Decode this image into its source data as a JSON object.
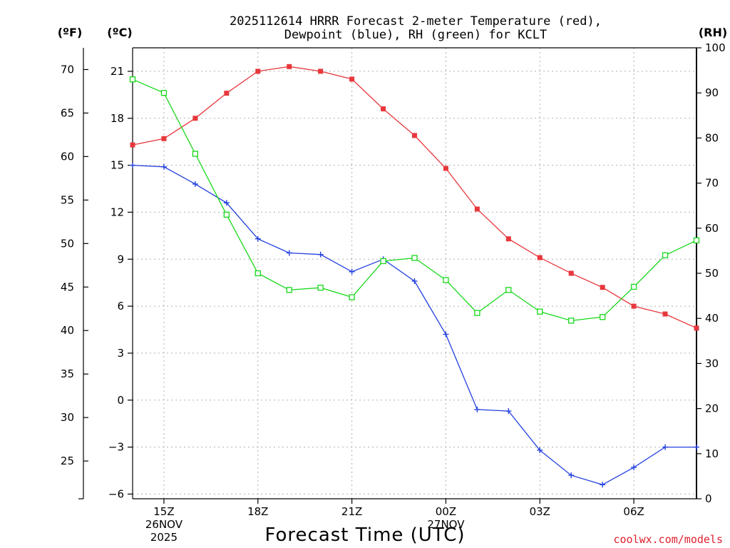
{
  "chart_data": {
    "type": "line",
    "title": [
      "2025112614 HRRR Forecast 2-meter Temperature (red),",
      "Dewpoint (blue), RH (green) for KCLT"
    ],
    "xlabel": "Forecast Time (UTC)",
    "credit": "coolwx.com/models",
    "units": {
      "fahrenheit": "(ºF)",
      "celsius": "(ºC)",
      "rh": "(RH)"
    },
    "x": [
      14,
      15,
      16,
      17,
      18,
      19,
      20,
      21,
      22,
      23,
      24,
      25,
      26,
      27,
      28,
      29,
      30,
      31,
      32
    ],
    "xlim": [
      14,
      32
    ],
    "x_ticks": [
      {
        "x": 15,
        "lines": [
          "15Z",
          "26NOV",
          "2025"
        ]
      },
      {
        "x": 18,
        "lines": [
          "18Z"
        ]
      },
      {
        "x": 21,
        "lines": [
          "21Z"
        ]
      },
      {
        "x": 24,
        "lines": [
          "00Z",
          "27NOV"
        ]
      },
      {
        "x": 27,
        "lines": [
          "03Z"
        ]
      },
      {
        "x": 30,
        "lines": [
          "06Z"
        ]
      }
    ],
    "y_celsius": {
      "lim": [
        -6.3,
        22.5
      ],
      "ticks": [
        21,
        18,
        15,
        12,
        9,
        6,
        3,
        0,
        -3,
        -6
      ],
      "tick_labels": [
        "21",
        "18",
        "15",
        "12",
        "9",
        "6",
        "3",
        "0",
        "−3",
        "−6"
      ]
    },
    "y_fahrenheit": {
      "ticks": [
        70,
        65,
        60,
        55,
        50,
        45,
        40,
        35,
        30,
        25
      ],
      "tick_labels": [
        "70",
        "65",
        "60",
        "55",
        "50",
        "45",
        "40",
        "35",
        "30",
        "25"
      ]
    },
    "y_rh": {
      "lim": [
        0,
        100
      ],
      "ticks": [
        100,
        90,
        80,
        70,
        60,
        50,
        40,
        30,
        20,
        10,
        0
      ],
      "tick_labels": [
        "100",
        "90",
        "80",
        "70",
        "60",
        "50",
        "40",
        "30",
        "20",
        "10",
        "0"
      ]
    },
    "series": [
      {
        "name": "Temperature",
        "color": "#e8373c",
        "marker": "filled-square",
        "axis": "celsius",
        "values": [
          16.3,
          16.7,
          18.0,
          19.6,
          21.0,
          21.3,
          21.0,
          20.5,
          18.6,
          16.9,
          14.8,
          12.2,
          10.3,
          9.1,
          8.1,
          7.2,
          6.0,
          5.5,
          4.6
        ]
      },
      {
        "name": "Dewpoint",
        "color": "#2441e0",
        "marker": "plus",
        "axis": "celsius",
        "values": [
          15.0,
          14.9,
          13.8,
          12.6,
          10.3,
          9.4,
          9.3,
          8.2,
          9.0,
          7.6,
          4.2,
          -0.6,
          -0.7,
          -3.2,
          -4.8,
          -5.4,
          -4.3,
          -3.0,
          -3.0
        ]
      },
      {
        "name": "RH",
        "color": "#17d81a",
        "marker": "open-square",
        "axis": "rh",
        "values": [
          93,
          90,
          76.5,
          63,
          50,
          46.3,
          46.8,
          44.7,
          52.7,
          53.4,
          48.5,
          41.2,
          46.3,
          41.5,
          39.5,
          40.3,
          47,
          54,
          57.3
        ]
      }
    ]
  }
}
